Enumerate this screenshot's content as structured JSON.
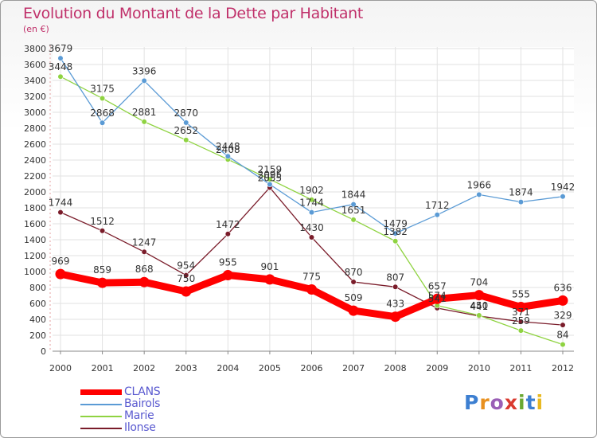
{
  "title": "Evolution du Montant de la Dette par Habitant",
  "subtitle": "(en €)",
  "logo": {
    "letters": [
      "P",
      "r",
      "o",
      "x",
      "i",
      "t",
      "i"
    ],
    "colors": [
      "#3d7fd1",
      "#e8901e",
      "#9a5fb6",
      "#d93a2f",
      "#6aa832",
      "#3d7fd1",
      "#e8b820"
    ]
  },
  "chart_data": {
    "type": "line",
    "x": [
      "2000",
      "2001",
      "2002",
      "2003",
      "2004",
      "2005",
      "2006",
      "2007",
      "2008",
      "2009",
      "2010",
      "2011",
      "2012"
    ],
    "ylim": [
      0,
      3800
    ],
    "yticks": [
      "0",
      "200",
      "400",
      "600",
      "800",
      "1000",
      "1200",
      "1400",
      "1600",
      "1800",
      "2000",
      "2200",
      "2400",
      "2600",
      "2800",
      "3000",
      "3200",
      "3400",
      "3600",
      "3800"
    ],
    "grid": true,
    "legend_placement": "bottom-left",
    "series": [
      {
        "name": "Ilonse",
        "color": "#7a1c2a",
        "values": [
          1744,
          1512,
          1247,
          954,
          1472,
          2055,
          1430,
          870,
          807,
          541,
          441,
          371,
          329
        ],
        "labels": [
          "1744",
          "1512",
          "1247",
          "954",
          "1472",
          "2055",
          "1430",
          "870",
          "807",
          "541",
          "441",
          "371",
          "329"
        ]
      },
      {
        "name": "Marie",
        "color": "#8fd341",
        "values": [
          3448,
          3175,
          2881,
          2652,
          2408,
          2159,
          1902,
          1651,
          1382,
          574,
          450,
          259,
          84
        ],
        "labels": [
          "3448",
          "3175",
          "2881",
          "2652",
          "2408",
          "2159",
          "1902",
          "1651",
          "1382",
          "574",
          "450",
          "259",
          "84"
        ]
      },
      {
        "name": "Bairols",
        "color": "#5b9bd5",
        "values": [
          3679,
          2868,
          3396,
          2870,
          2448,
          2095,
          1744,
          1844,
          1479,
          1712,
          1966,
          1874,
          1942
        ],
        "labels": [
          "3679",
          "2868",
          "3396",
          "2870",
          "2448",
          "2095",
          "1744",
          "1844",
          "1479",
          "1712",
          "1966",
          "1874",
          "1942"
        ]
      },
      {
        "name": "CLANS",
        "color": "#ff0000",
        "values": [
          969,
          859,
          868,
          750,
          955,
          901,
          775,
          509,
          433,
          657,
          704,
          555,
          636
        ],
        "labels": [
          "969",
          "859",
          "868",
          "750",
          "955",
          "901",
          "775",
          "509",
          "433",
          "657",
          "704",
          "555",
          "636"
        ]
      }
    ],
    "legend_order": [
      "CLANS",
      "Bairols",
      "Marie",
      "Ilonse"
    ]
  }
}
